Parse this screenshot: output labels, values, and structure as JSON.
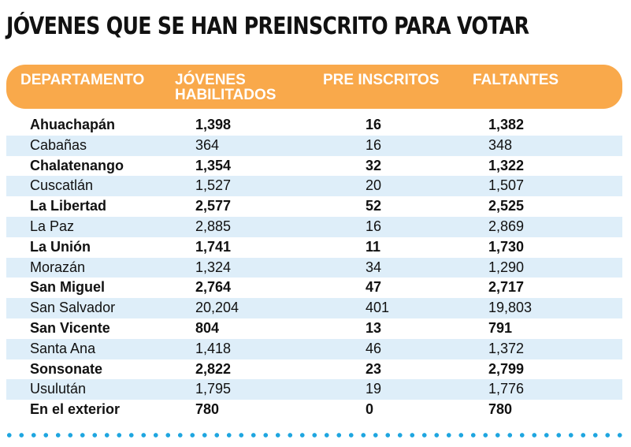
{
  "chart_data": {
    "type": "table",
    "title": "JÓVENES QUE SE HAN PREINSCRITO PARA VOTAR",
    "columns": [
      "DEPARTAMENTO",
      "JÓVENES\nHABILITADOS",
      "PRE INSCRITOS",
      "FALTANTES"
    ],
    "rows": [
      [
        "Ahuachapán",
        "1,398",
        "16",
        "1,382"
      ],
      [
        "Cabañas",
        "364",
        "16",
        "348"
      ],
      [
        "Chalatenango",
        "1,354",
        "32",
        "1,322"
      ],
      [
        "Cuscatlán",
        "1,527",
        "20",
        "1,507"
      ],
      [
        "La Libertad",
        "2,577",
        "52",
        "2,525"
      ],
      [
        "La Paz",
        "2,885",
        "16",
        "2,869"
      ],
      [
        "La Unión",
        "1,741",
        "11",
        "1,730"
      ],
      [
        "Morazán",
        "1,324",
        "34",
        "1,290"
      ],
      [
        "San Miguel",
        "2,764",
        "47",
        "2,717"
      ],
      [
        "San Salvador",
        "20,204",
        "401",
        "19,803"
      ],
      [
        "San Vicente",
        "804",
        "13",
        "791"
      ],
      [
        "Santa Ana",
        "1,418",
        "46",
        "1,372"
      ],
      [
        "Sonsonate",
        "2,822",
        "23",
        "2,799"
      ],
      [
        "Usulután",
        "1,795",
        "19",
        "1,776"
      ],
      [
        "En el exterior",
        "780",
        "0",
        "780"
      ]
    ]
  },
  "colors": {
    "header_bg": "#f9a94b",
    "header_text": "#ffffff",
    "alt_row_bg": "#deeef9",
    "dots": "#1fa6e0",
    "text": "#111111"
  }
}
